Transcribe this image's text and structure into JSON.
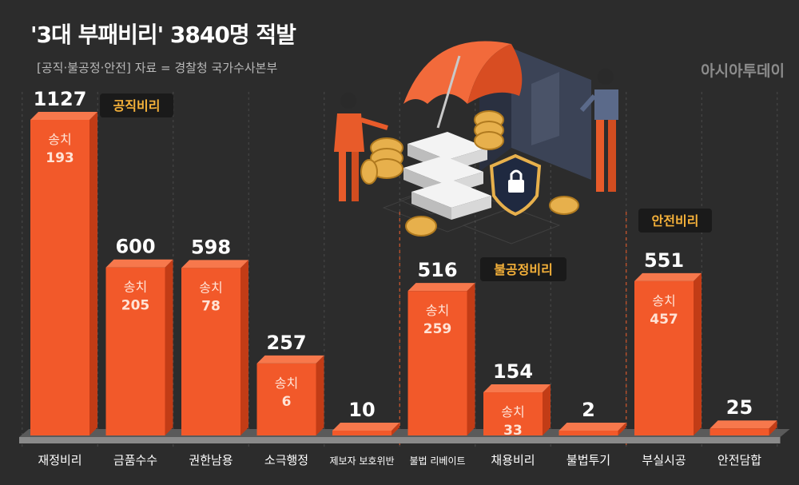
{
  "title": "'3대 부패비리' 3840명 적발",
  "subtitle": "[공직·불공정·안전] 자료 = 경찰청 국가수사본부",
  "brand": "아시아투데이",
  "colors": {
    "background": "#2c2c2c",
    "bar_front": "#f2592a",
    "bar_side": "#c23c16",
    "bar_top": "#f7784c",
    "group_label_bg": "#1a1a1a",
    "group_label_text": "#f6b23a"
  },
  "chart_data": {
    "type": "bar",
    "title": "'3대 부패비리' 3840명 적발",
    "categories": [
      "재정비리",
      "금품수수",
      "권한남용",
      "소극행정",
      "제보자 보호위반",
      "불법 리베이트",
      "채용비리",
      "불법투기",
      "부실시공",
      "안전담합"
    ],
    "series": [
      {
        "values": [
          1127,
          600,
          598,
          257,
          10,
          516,
          154,
          2,
          551,
          25
        ]
      }
    ],
    "detained_label": "송치",
    "detained": [
      193,
      205,
      78,
      6,
      null,
      259,
      33,
      null,
      457,
      null
    ],
    "groups": [
      {
        "label": "공직비리",
        "categories": [
          "재정비리",
          "금품수수",
          "권한남용",
          "소극행정",
          "제보자 보호위반"
        ]
      },
      {
        "label": "불공정비리",
        "categories": [
          "불법 리베이트",
          "채용비리",
          "불법투기"
        ]
      },
      {
        "label": "안전비리",
        "categories": [
          "부실시공",
          "안전담합"
        ]
      }
    ],
    "ylim": [
      0,
      1127
    ],
    "grid": false
  },
  "illustration": {
    "description_icons": [
      "umbrella-icon",
      "money-stack-icon",
      "coin-icon",
      "lock-shield-icon",
      "briefcase-icon",
      "person-icon"
    ]
  }
}
